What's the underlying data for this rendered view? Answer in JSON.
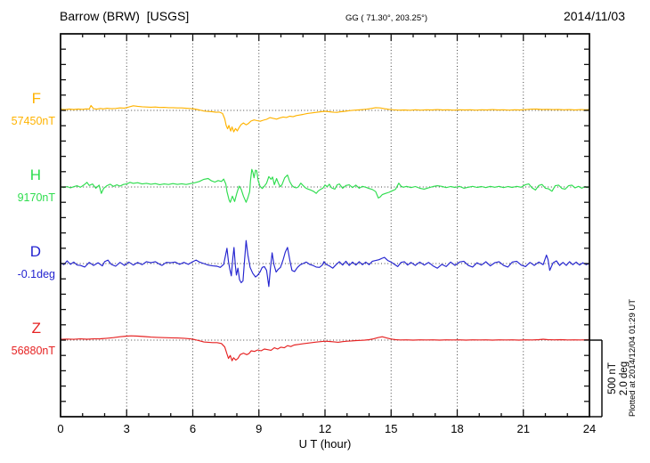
{
  "header": {
    "title": "Barrow (BRW)  [USGS]",
    "coordinates": "GG ( 71.30°, 203.25°)",
    "date": "2014/11/03"
  },
  "footer_note": "Plotted at 2014/12/04 01:29 UT",
  "scale_bar": {
    "text": "500 nT\n2.0 deg",
    "nT": 500,
    "deg": 2.0
  },
  "chart_data": {
    "type": "line",
    "title": "Barrow (BRW) [USGS] magnetogram",
    "xlabel": "U T (hour)",
    "x": {
      "min": 0,
      "max": 24,
      "major_step": 3,
      "minor_step": 1,
      "tick_labels": [
        "0",
        "3",
        "6",
        "9",
        "12",
        "15",
        "18",
        "21",
        "24"
      ]
    },
    "y_divisions": 25,
    "scale": {
      "nT_per_division": 100,
      "deg_per_division": 0.4
    },
    "grid": "dotted vertical at 3h steps, dotted horizontal at each series baseline",
    "legend_position": "left margin, one label per series",
    "series": [
      {
        "id": "F",
        "label": "F",
        "value_label": "57450nT",
        "baseline_value": "57450 nT",
        "color": "#FFB300",
        "unit": "nT",
        "baseline_division": 5,
        "points": [
          0,
          8,
          0.2,
          5,
          0.4,
          9,
          0.6,
          6,
          0.8,
          9,
          1.0,
          7,
          1.15,
          10,
          1.3,
          9,
          1.38,
          32,
          1.5,
          11,
          1.65,
          8,
          1.8,
          13,
          1.95,
          10,
          2.1,
          14,
          2.3,
          11,
          2.5,
          13,
          2.7,
          16,
          2.9,
          15,
          3.1,
          22,
          3.3,
          30,
          3.5,
          27,
          3.7,
          24,
          3.9,
          22,
          4.1,
          21,
          4.3,
          22,
          4.5,
          19,
          4.7,
          20,
          4.9,
          18,
          5.1,
          18,
          5.3,
          16,
          5.5,
          16,
          5.7,
          14,
          5.9,
          12,
          6.1,
          9,
          6.3,
          3,
          6.5,
          -4,
          6.7,
          -7,
          6.9,
          -9,
          7.05,
          -12,
          7.2,
          -11,
          7.35,
          -20,
          7.45,
          -55,
          7.52,
          -100,
          7.58,
          -120,
          7.64,
          -98,
          7.72,
          -135,
          7.78,
          -108,
          7.86,
          -140,
          7.94,
          -118,
          8.02,
          -134,
          8.1,
          -112,
          8.2,
          -92,
          8.3,
          -82,
          8.42,
          -94,
          8.52,
          -86,
          8.64,
          -70,
          8.78,
          -62,
          8.92,
          -67,
          9.06,
          -71,
          9.2,
          -64,
          9.35,
          -58,
          9.5,
          -47,
          9.65,
          -52,
          9.8,
          -57,
          9.95,
          -49,
          10.1,
          -43,
          10.25,
          -46,
          10.4,
          -38,
          10.55,
          -41,
          10.7,
          -34,
          10.85,
          -30,
          11.0,
          -26,
          11.2,
          -20,
          11.4,
          -16,
          11.6,
          -13,
          11.8,
          -9,
          12.0,
          -6,
          12.2,
          -9,
          12.4,
          -12,
          12.55,
          -13,
          12.7,
          -9,
          12.9,
          -6,
          13.1,
          -2,
          13.3,
          1,
          13.5,
          3,
          13.7,
          5,
          13.9,
          8,
          14.1,
          13,
          14.3,
          18,
          14.5,
          16,
          14.7,
          11,
          14.9,
          7,
          15.1,
          4,
          15.35,
          2,
          15.6,
          3,
          15.85,
          1,
          16.1,
          4,
          16.35,
          2,
          16.6,
          4,
          16.85,
          3,
          17.1,
          5,
          17.35,
          3,
          17.6,
          4,
          17.85,
          2,
          18.1,
          4,
          18.35,
          3,
          18.6,
          4,
          18.85,
          2,
          19.1,
          4,
          19.35,
          3,
          19.6,
          5,
          19.85,
          3,
          20.1,
          4,
          20.35,
          2,
          20.6,
          4,
          20.85,
          3,
          21.1,
          5,
          21.35,
          8,
          21.6,
          9,
          21.85,
          6,
          22.1,
          7,
          22.35,
          5,
          22.6,
          6,
          22.85,
          4,
          23.1,
          5,
          23.35,
          3,
          23.6,
          5,
          23.85,
          4,
          24,
          6
        ]
      },
      {
        "id": "H",
        "label": "H",
        "value_label": "9170nT",
        "baseline_value": "9170 nT",
        "color": "#2EDD4E",
        "unit": "nT",
        "baseline_division": 10,
        "points": [
          0,
          2,
          0.15,
          -4,
          0.3,
          3,
          0.45,
          -6,
          0.6,
          2,
          0.75,
          8,
          0.9,
          -2,
          1.05,
          12,
          1.2,
          30,
          1.3,
          10,
          1.45,
          20,
          1.6,
          -8,
          1.75,
          12,
          1.85,
          -42,
          1.95,
          -10,
          2.1,
          8,
          2.25,
          18,
          2.4,
          4,
          2.55,
          14,
          2.7,
          6,
          2.85,
          16,
          3.0,
          20,
          3.15,
          30,
          3.3,
          24,
          3.5,
          28,
          3.7,
          20,
          3.9,
          24,
          4.1,
          18,
          4.3,
          22,
          4.5,
          15,
          4.7,
          20,
          4.9,
          16,
          5.1,
          22,
          5.3,
          17,
          5.5,
          21,
          5.7,
          16,
          5.9,
          22,
          6.1,
          28,
          6.3,
          36,
          6.5,
          50,
          6.7,
          55,
          6.85,
          40,
          7.0,
          32,
          7.15,
          42,
          7.3,
          36,
          7.4,
          52,
          7.5,
          20,
          7.55,
          -30,
          7.65,
          -85,
          7.7,
          -100,
          7.8,
          -60,
          7.9,
          -95,
          8.0,
          -40,
          8.1,
          5,
          8.2,
          -15,
          8.3,
          -60,
          8.42,
          -100,
          8.5,
          -70,
          8.58,
          -30,
          8.62,
          40,
          8.68,
          115,
          8.73,
          95,
          8.78,
          60,
          8.85,
          110,
          8.9,
          105,
          8.97,
          40,
          9.05,
          5,
          9.15,
          -10,
          9.25,
          5,
          9.35,
          25,
          9.45,
          68,
          9.55,
          50,
          9.62,
          65,
          9.7,
          15,
          9.8,
          55,
          9.9,
          20,
          9.97,
          2,
          10.05,
          15,
          10.17,
          60,
          10.3,
          78,
          10.4,
          35,
          10.5,
          10,
          10.6,
          -2,
          10.7,
          -6,
          10.8,
          2,
          10.9,
          25,
          11.0,
          10,
          11.1,
          -4,
          11.2,
          -12,
          11.35,
          -20,
          11.5,
          -30,
          11.6,
          -42,
          11.7,
          -25,
          11.8,
          -15,
          11.9,
          -8,
          12.0,
          12,
          12.1,
          2,
          12.2,
          18,
          12.3,
          -6,
          12.45,
          -14,
          12.55,
          14,
          12.65,
          20,
          12.8,
          -8,
          12.95,
          10,
          13.1,
          14,
          13.25,
          -4,
          13.4,
          12,
          13.55,
          -8,
          13.7,
          4,
          13.85,
          -2,
          14.0,
          -10,
          14.15,
          -16,
          14.3,
          -30,
          14.42,
          -72,
          14.5,
          -65,
          14.6,
          -50,
          14.75,
          -42,
          14.9,
          -35,
          15.05,
          -25,
          15.2,
          -15,
          15.35,
          25,
          15.45,
          5,
          15.55,
          -2,
          15.7,
          4,
          15.9,
          -4,
          16.1,
          3,
          16.3,
          -8,
          16.5,
          -14,
          16.7,
          -5,
          16.9,
          3,
          17.1,
          8,
          17.3,
          4,
          17.5,
          -4,
          17.7,
          3,
          17.9,
          -3,
          18.1,
          4,
          18.3,
          -8,
          18.5,
          -2,
          18.7,
          4,
          18.9,
          -3,
          19.1,
          3,
          19.3,
          -4,
          19.5,
          4,
          19.7,
          -2,
          19.9,
          4,
          20.1,
          -4,
          20.3,
          3,
          20.5,
          -3,
          20.7,
          4,
          20.9,
          -2,
          21.1,
          15,
          21.25,
          20,
          21.4,
          -6,
          21.55,
          -20,
          21.7,
          10,
          21.85,
          16,
          22.0,
          -8,
          22.15,
          -12,
          22.3,
          -28,
          22.45,
          8,
          22.6,
          12,
          22.75,
          -10,
          22.9,
          -14,
          23.05,
          8,
          23.2,
          12,
          23.35,
          -6,
          23.5,
          4,
          23.65,
          -8,
          23.8,
          2,
          23.9,
          -4,
          24,
          2
        ]
      },
      {
        "id": "D",
        "label": "D",
        "value_label": "-0.1deg",
        "baseline_value": "-0.1 deg",
        "color": "#2424D0",
        "unit": "deg",
        "baseline_division": 15,
        "points": [
          0,
          0.02,
          0.15,
          -0.03,
          0.3,
          0.07,
          0.45,
          -0.02,
          0.6,
          0.04,
          0.75,
          -0.04,
          0.9,
          -0.05,
          1.1,
          -0.09,
          1.3,
          0.03,
          1.5,
          -0.05,
          1.7,
          0.02,
          1.9,
          -0.06,
          2.0,
          0.05,
          2.15,
          0.09,
          2.3,
          -0.02,
          2.5,
          -0.07,
          2.7,
          0.03,
          2.9,
          -0.05,
          3.1,
          0.04,
          3.3,
          -0.04,
          3.5,
          0.03,
          3.7,
          -0.03,
          3.9,
          0.05,
          4.1,
          0.02,
          4.3,
          0.05,
          4.5,
          -0.02,
          4.6,
          -0.05,
          4.8,
          0.03,
          5.0,
          0.02,
          5.2,
          0.04,
          5.4,
          -0.02,
          5.6,
          0.03,
          5.8,
          -0.02,
          6.0,
          0.05,
          6.15,
          0.09,
          6.3,
          0.04,
          6.5,
          0.0,
          6.7,
          -0.04,
          6.9,
          -0.06,
          7.1,
          -0.07,
          7.25,
          -0.1,
          7.4,
          -0.02,
          7.5,
          0.25,
          7.55,
          0.4,
          7.62,
          0.05,
          7.68,
          -0.15,
          7.75,
          -0.32,
          7.82,
          0.15,
          7.87,
          0.42,
          7.93,
          -0.05,
          7.98,
          -0.3,
          8.05,
          -0.12,
          8.12,
          -0.42,
          8.2,
          -0.5,
          8.28,
          -0.45,
          8.35,
          0.1,
          8.42,
          0.6,
          8.5,
          0.22,
          8.6,
          -0.1,
          8.72,
          -0.25,
          8.85,
          -0.35,
          8.95,
          -0.3,
          9.05,
          -0.22,
          9.15,
          -0.1,
          9.25,
          -0.08,
          9.35,
          -0.18,
          9.45,
          -0.6,
          9.52,
          -0.15,
          9.6,
          0.28,
          9.68,
          -0.02,
          9.78,
          -0.22,
          9.88,
          -0.15,
          9.98,
          -0.1,
          10.1,
          0.1,
          10.2,
          0.3,
          10.3,
          0.42,
          10.4,
          0.1,
          10.5,
          -0.18,
          10.62,
          -0.21,
          10.75,
          -0.1,
          10.88,
          -0.03,
          11.0,
          0.0,
          11.15,
          0.04,
          11.3,
          -0.02,
          11.45,
          -0.05,
          11.6,
          -0.09,
          11.75,
          -0.1,
          11.88,
          -0.04,
          11.95,
          0.05,
          12.05,
          -0.02,
          12.2,
          -0.06,
          12.35,
          -0.12,
          12.5,
          -0.03,
          12.65,
          0.05,
          12.8,
          -0.04,
          12.95,
          0.06,
          13.1,
          -0.05,
          13.25,
          0.04,
          13.4,
          -0.04,
          13.55,
          0.05,
          13.7,
          -0.03,
          13.85,
          0.04,
          14.0,
          -0.03,
          14.15,
          0.06,
          14.3,
          0.08,
          14.45,
          0.1,
          14.6,
          0.14,
          14.7,
          0.16,
          14.85,
          0.08,
          15.0,
          0.04,
          15.15,
          -0.02,
          15.3,
          -0.08,
          15.45,
          0.03,
          15.6,
          0.05,
          15.75,
          -0.04,
          15.9,
          0.03,
          16.1,
          -0.05,
          16.3,
          0.04,
          16.5,
          -0.04,
          16.7,
          0.03,
          16.9,
          -0.06,
          17.1,
          -0.12,
          17.3,
          -0.02,
          17.5,
          -0.08,
          17.7,
          0.04,
          17.9,
          -0.05,
          18.1,
          0.04,
          18.3,
          0.06,
          18.5,
          -0.05,
          18.7,
          -0.09,
          18.9,
          0.02,
          19.1,
          -0.04,
          19.3,
          0.05,
          19.5,
          -0.06,
          19.7,
          0.02,
          19.9,
          0.05,
          20.1,
          -0.05,
          20.3,
          -0.09,
          20.5,
          0.04,
          20.7,
          0.06,
          20.9,
          -0.04,
          21.1,
          -0.08,
          21.3,
          0.03,
          21.5,
          -0.05,
          21.7,
          0.04,
          21.9,
          -0.03,
          22.05,
          0.22,
          22.12,
          0.1,
          22.2,
          -0.18,
          22.35,
          0.02,
          22.5,
          0.07,
          22.65,
          -0.05,
          22.8,
          0.03,
          22.95,
          -0.05,
          23.1,
          0.05,
          23.25,
          -0.03,
          23.4,
          0.04,
          23.55,
          -0.04,
          23.7,
          0.02,
          23.85,
          -0.03,
          24,
          0.0
        ]
      },
      {
        "id": "Z",
        "label": "Z",
        "value_label": "56880nT",
        "baseline_value": "56880 nT",
        "color": "#E62222",
        "unit": "nT",
        "baseline_division": 20,
        "points": [
          0,
          5,
          0.3,
          7,
          0.6,
          5,
          0.9,
          8,
          1.2,
          6,
          1.5,
          8,
          1.8,
          9,
          2.1,
          12,
          2.4,
          16,
          2.7,
          22,
          3.0,
          26,
          3.2,
          28,
          3.5,
          26,
          3.8,
          23,
          4.1,
          20,
          4.4,
          18,
          4.7,
          16,
          5.0,
          15,
          5.3,
          14,
          5.6,
          12,
          5.9,
          8,
          6.1,
          3,
          6.3,
          -4,
          6.5,
          -12,
          6.7,
          -14,
          6.9,
          -16,
          7.1,
          -16,
          7.3,
          -22,
          7.45,
          -45,
          7.55,
          -90,
          7.62,
          -120,
          7.7,
          -100,
          7.78,
          -135,
          7.85,
          -115,
          7.95,
          -130,
          8.05,
          -120,
          8.15,
          -95,
          8.3,
          -85,
          8.45,
          -95,
          8.55,
          -88,
          8.65,
          -70,
          8.8,
          -74,
          8.95,
          -64,
          9.1,
          -70,
          9.25,
          -58,
          9.4,
          -62,
          9.55,
          -66,
          9.7,
          -50,
          9.85,
          -58,
          10.0,
          -46,
          10.15,
          -50,
          10.3,
          -36,
          10.45,
          -42,
          10.6,
          -32,
          10.8,
          -28,
          11.0,
          -24,
          11.2,
          -20,
          11.4,
          -16,
          11.6,
          -13,
          11.8,
          -10,
          12.0,
          -7,
          12.2,
          -9,
          12.4,
          -11,
          12.6,
          -14,
          12.8,
          -10,
          13.0,
          -7,
          13.2,
          -5,
          13.4,
          -3,
          13.6,
          -2,
          13.8,
          0,
          14.0,
          3,
          14.2,
          8,
          14.4,
          16,
          14.6,
          22,
          14.8,
          14,
          15.0,
          7,
          15.2,
          3,
          15.4,
          1,
          15.7,
          2,
          16.0,
          0,
          16.3,
          2,
          16.6,
          1,
          16.9,
          2,
          17.2,
          0,
          17.5,
          2,
          17.8,
          1,
          18.1,
          2,
          18.4,
          0,
          18.7,
          2,
          19.0,
          1,
          19.3,
          2,
          19.6,
          0,
          19.9,
          2,
          20.2,
          1,
          20.5,
          2,
          20.8,
          0,
          21.1,
          2,
          21.4,
          1,
          21.7,
          3,
          21.9,
          6,
          22.1,
          3,
          22.4,
          2,
          22.7,
          3,
          23.0,
          1,
          23.3,
          2,
          23.6,
          1,
          24,
          3
        ]
      }
    ]
  }
}
